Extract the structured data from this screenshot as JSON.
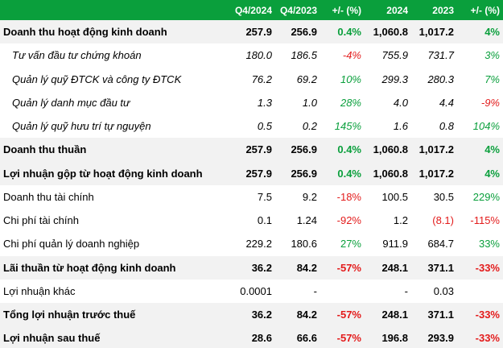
{
  "colors": {
    "header_bg": "#0a9f3c",
    "positive": "#0a9f3c",
    "negative": "#e31b1b",
    "row_highlight": "#f2f2f2"
  },
  "headers": [
    "",
    "Q4/2024",
    "Q4/2023",
    "+/- (%)",
    "2024",
    "2023",
    "+/- (%)"
  ],
  "rows": [
    {
      "label": "Doanh thu hoạt động kinh doanh",
      "q4_2024": "257.9",
      "q4_2023": "256.9",
      "q_change": "0.4%",
      "y2024": "1,060.8",
      "y2023": "1,017.2",
      "y_change": "4%"
    },
    {
      "label": "Tư vấn đầu tư chứng khoán",
      "q4_2024": "180.0",
      "q4_2023": "186.5",
      "q_change": "-4%",
      "y2024": "755.9",
      "y2023": "731.7",
      "y_change": "3%"
    },
    {
      "label": "Quản lý quỹ ĐTCK và công ty ĐTCK",
      "q4_2024": "76.2",
      "q4_2023": "69.2",
      "q_change": "10%",
      "y2024": "299.3",
      "y2023": "280.3",
      "y_change": "7%"
    },
    {
      "label": "Quản lý danh mục đầu tư",
      "q4_2024": "1.3",
      "q4_2023": "1.0",
      "q_change": "28%",
      "y2024": "4.0",
      "y2023": "4.4",
      "y_change": "-9%"
    },
    {
      "label": "Quản lý quỹ hưu trí tự nguyện",
      "q4_2024": "0.5",
      "q4_2023": "0.2",
      "q_change": "145%",
      "y2024": "1.6",
      "y2023": "0.8",
      "y_change": "104%"
    },
    {
      "label": "Doanh thu thuần",
      "q4_2024": "257.9",
      "q4_2023": "256.9",
      "q_change": "0.4%",
      "y2024": "1,060.8",
      "y2023": "1,017.2",
      "y_change": "4%"
    },
    {
      "label": "Lợi nhuận gộp từ hoạt động kinh doanh",
      "q4_2024": "257.9",
      "q4_2023": "256.9",
      "q_change": "0.4%",
      "y2024": "1,060.8",
      "y2023": "1,017.2",
      "y_change": "4%"
    },
    {
      "label": "Doanh thu tài chính",
      "q4_2024": "7.5",
      "q4_2023": "9.2",
      "q_change": "-18%",
      "y2024": "100.5",
      "y2023": "30.5",
      "y_change": "229%"
    },
    {
      "label": "Chi phí tài chính",
      "q4_2024": "0.1",
      "q4_2023": "1.24",
      "q_change": "-92%",
      "y2024": "1.2",
      "y2023": "(8.1)",
      "y_change": "-115%"
    },
    {
      "label": "Chi phí quản lý doanh nghiệp",
      "q4_2024": "229.2",
      "q4_2023": "180.6",
      "q_change": "27%",
      "y2024": "911.9",
      "y2023": "684.7",
      "y_change": "33%"
    },
    {
      "label": "Lãi thuần từ hoạt động kinh doanh",
      "q4_2024": "36.2",
      "q4_2023": "84.2",
      "q_change": "-57%",
      "y2024": "248.1",
      "y2023": "371.1",
      "y_change": "-33%"
    },
    {
      "label": "Lợi nhuận khác",
      "q4_2024": "0.0001",
      "q4_2023": "-",
      "q_change": "",
      "y2024": "-",
      "y2023": "0.03",
      "y_change": ""
    },
    {
      "label": "Tổng lợi nhuận trước thuế",
      "q4_2024": "36.2",
      "q4_2023": "84.2",
      "q_change": "-57%",
      "y2024": "248.1",
      "y2023": "371.1",
      "y_change": "-33%"
    },
    {
      "label": "Lợi nhuận sau thuế",
      "q4_2024": "28.6",
      "q4_2023": "66.6",
      "q_change": "-57%",
      "y2024": "196.8",
      "y2023": "293.9",
      "y_change": "-33%"
    }
  ]
}
